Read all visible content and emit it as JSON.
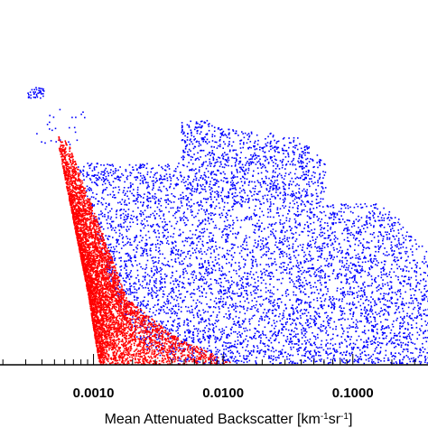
{
  "chart_data": {
    "type": "scatter",
    "x_scale": "log",
    "xlim": [
      0.00019,
      0.38
    ],
    "y_scale": "linear",
    "xticks": [
      {
        "value": 0.001,
        "label": "0.0010"
      },
      {
        "value": 0.01,
        "label": "0.0100"
      },
      {
        "value": 0.1,
        "label": "0.1000"
      }
    ],
    "xlabel": {
      "prefix": "Mean Attenuated Backscatter [km",
      "sup1": "-1",
      "mid": "sr",
      "sup2": "-1",
      "suffix": "]"
    },
    "grid": false,
    "legend": "none",
    "series": [
      {
        "color": "#0000ff",
        "description_extent": "dense cloud of points spanning x from about 0.0005 to about 0.3",
        "point_count_visible": "many thousands"
      },
      {
        "color": "#ff0000",
        "description_extent": "dense wedge of points from about x 0.0005 (upper) to about 0.004 (lower)",
        "point_count_visible": "many thousands"
      }
    ]
  }
}
